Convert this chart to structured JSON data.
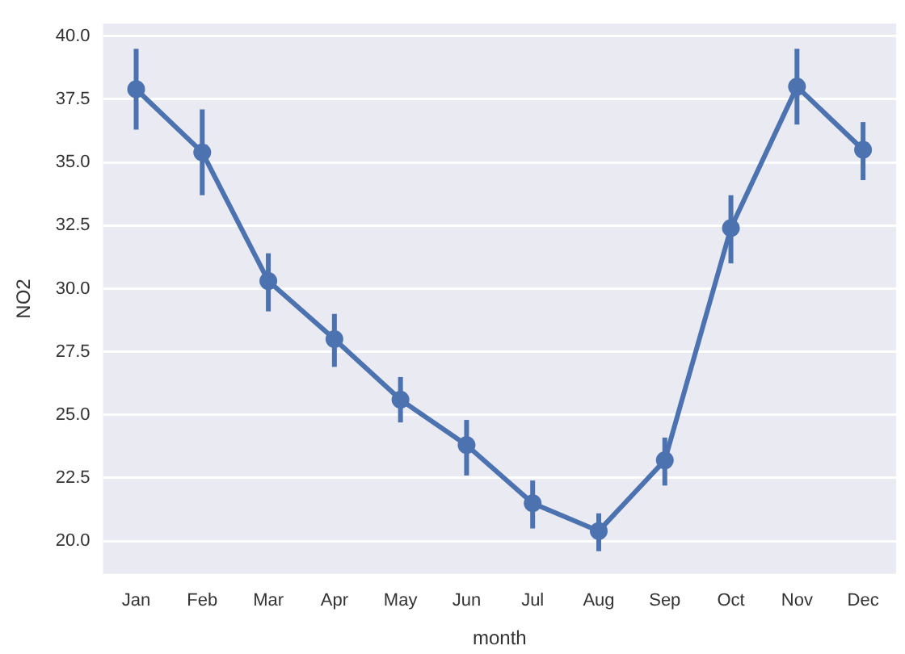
{
  "chart_data": {
    "type": "line",
    "xlabel": "month",
    "ylabel": "NO2",
    "categories": [
      "Jan",
      "Feb",
      "Mar",
      "Apr",
      "May",
      "Jun",
      "Jul",
      "Aug",
      "Sep",
      "Oct",
      "Nov",
      "Dec"
    ],
    "series": [
      {
        "color": "#4c72b0",
        "values": [
          37.9,
          35.4,
          30.3,
          28.0,
          25.6,
          23.8,
          21.5,
          20.4,
          23.2,
          32.4,
          38.0,
          35.5
        ],
        "errors": [
          [
            36.3,
            39.5
          ],
          [
            33.7,
            37.1
          ],
          [
            29.1,
            31.4
          ],
          [
            26.9,
            29.0
          ],
          [
            24.7,
            26.5
          ],
          [
            22.6,
            24.8
          ],
          [
            20.5,
            22.4
          ],
          [
            19.6,
            21.1
          ],
          [
            22.2,
            24.1
          ],
          [
            31.0,
            33.7
          ],
          [
            36.5,
            39.5
          ],
          [
            34.3,
            36.6
          ]
        ]
      }
    ],
    "ylim": [
      18.7,
      40.5
    ],
    "yticks": [
      {
        "value": 20,
        "label": "20.0"
      },
      22.5,
      {
        "value": 25,
        "label": "25.0"
      },
      27.5,
      {
        "value": 30,
        "label": "30.0"
      },
      32.5,
      {
        "value": 35,
        "label": "35.0"
      },
      37.5,
      {
        "value": 40,
        "label": "40.0"
      }
    ],
    "grid": "y",
    "marker": "circle",
    "line_style": "solid",
    "legend": false
  }
}
